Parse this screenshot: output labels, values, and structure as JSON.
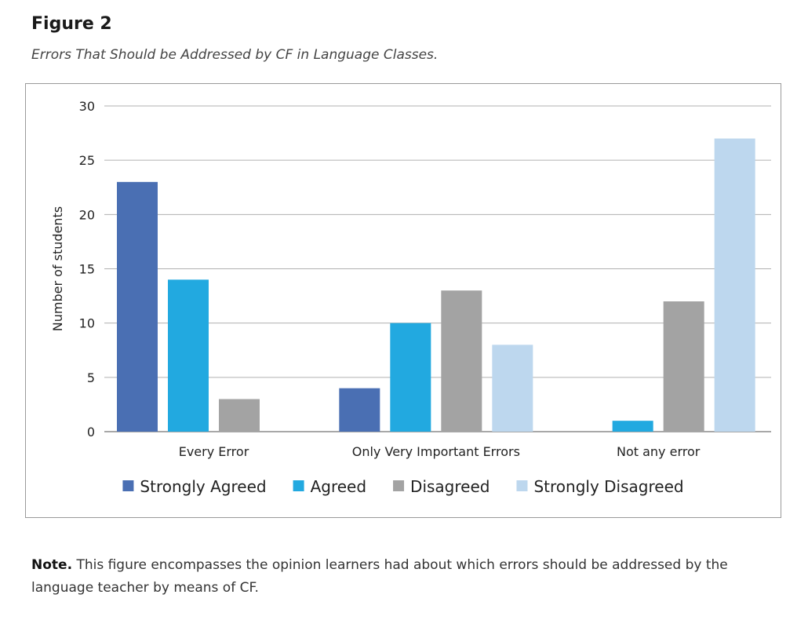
{
  "figure": {
    "label": "Figure 2",
    "title": "Errors That Should be Addressed by CF in Language Classes."
  },
  "chart_data": {
    "type": "bar",
    "title": "Errors That Should be Addressed by CF in Language Classes.",
    "xlabel": "",
    "ylabel": "Number of students",
    "ylim": [
      0,
      30
    ],
    "yticks": [
      0,
      5,
      10,
      15,
      20,
      25,
      30
    ],
    "grid": true,
    "legend_position": "bottom",
    "categories": [
      "Every Error",
      "Only Very Important Errors",
      "Not any error"
    ],
    "series": [
      {
        "name": "Strongly Agreed",
        "color": "#4a6fb3",
        "values": [
          23,
          4,
          0
        ]
      },
      {
        "name": "Agreed",
        "color": "#22a9e0",
        "values": [
          14,
          10,
          1
        ]
      },
      {
        "name": "Disagreed",
        "color": "#a3a3a3",
        "values": [
          3,
          13,
          12
        ]
      },
      {
        "name": "Strongly Disagreed",
        "color": "#bdd7ee",
        "values": [
          0,
          8,
          27
        ]
      }
    ]
  },
  "note": {
    "label": "Note.",
    "text": "This figure encompasses the opinion learners had about which errors should be addressed by the language teacher by means of CF."
  }
}
